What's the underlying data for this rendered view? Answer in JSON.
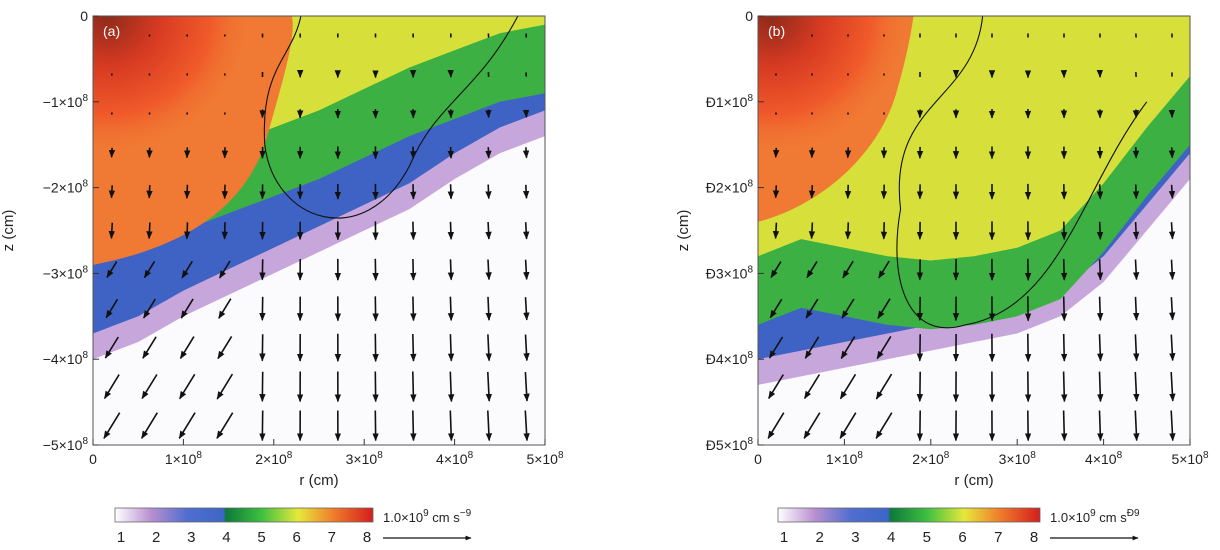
{
  "panels": [
    {
      "label": "(a)",
      "xlabel": "r (cm)",
      "ylabel": "z (cm)",
      "xticks": [
        "0",
        "1×10",
        "2×10",
        "3×10",
        "4×10",
        "5×10"
      ],
      "yticks": [
        "0",
        "−1×10",
        "−2×10",
        "−3×10",
        "−4×10",
        "−5×10"
      ],
      "exponent": "8",
      "colorbar": {
        "ticks": [
          "1",
          "2",
          "3",
          "4",
          "5",
          "6",
          "7",
          "8"
        ],
        "unit_prefix": "1.0×10",
        "unit_exp": "9",
        "unit_suffix": " cm s",
        "unit_suffix_exp": "−9"
      },
      "fronts": {
        "green_y": [
          0.55,
          0.52,
          0.5,
          0.46,
          0.42,
          0.38,
          0.33,
          0.28,
          0.24,
          0.2,
          0.18
        ],
        "purple_y": [
          0.8,
          0.76,
          0.7,
          0.65,
          0.6,
          0.55,
          0.5,
          0.45,
          0.38,
          0.32,
          0.28
        ]
      }
    },
    {
      "label": "(b)",
      "xlabel": "r (cm)",
      "ylabel": "z (cm)",
      "xticks": [
        "0",
        "1×10",
        "2×10",
        "3×10",
        "4×10",
        "5×10"
      ],
      "yticks": [
        "0",
        "Ð1×10",
        "Ð2×10",
        "Ð3×10",
        "Ð4×10",
        "Ð5×10"
      ],
      "exponent": "8",
      "colorbar": {
        "ticks": [
          "1",
          "2",
          "3",
          "4",
          "5",
          "6",
          "7",
          "8"
        ],
        "unit_prefix": "1.0×10",
        "unit_exp": "9",
        "unit_suffix": " cm s",
        "unit_suffix_exp": "Ð9"
      },
      "fronts": {
        "green_y": [
          0.72,
          0.68,
          0.7,
          0.72,
          0.73,
          0.72,
          0.7,
          0.66,
          0.55,
          0.42,
          0.3
        ],
        "purple_y": [
          0.86,
          0.84,
          0.82,
          0.8,
          0.78,
          0.76,
          0.74,
          0.7,
          0.62,
          0.5,
          0.38
        ]
      }
    }
  ]
}
